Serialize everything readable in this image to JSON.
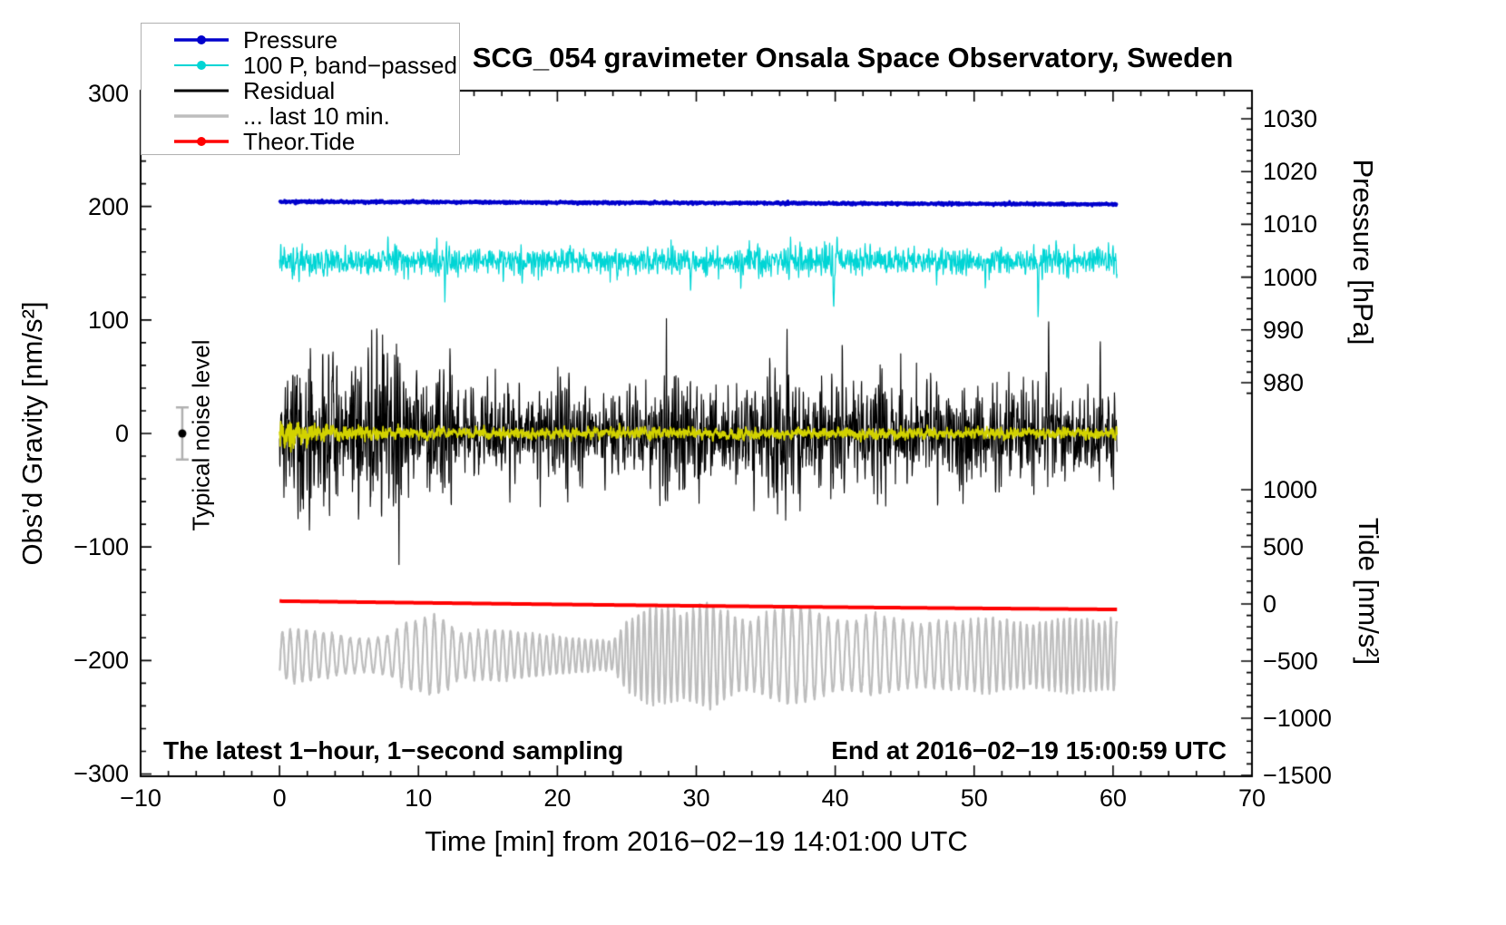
{
  "chart_data": {
    "type": "line",
    "title": "SCG_054 gravimeter Onsala Space Observatory, Sweden",
    "annotations": {
      "sampling_note": "The latest 1−hour, 1−second sampling",
      "end_time": "End at 2016−02−19 15:00:59 UTC",
      "noise_label": "Typical noise level"
    },
    "x_axis": {
      "label": "Time [min] from 2016−02−19 14:01:00 UTC",
      "min": -10,
      "max": 70,
      "minor_step": 2,
      "majors": [
        {
          "v": -10,
          "label": "−10"
        },
        {
          "v": 0,
          "label": "0"
        },
        {
          "v": 10,
          "label": "10"
        },
        {
          "v": 20,
          "label": "20"
        },
        {
          "v": 30,
          "label": "30"
        },
        {
          "v": 40,
          "label": "40"
        },
        {
          "v": 50,
          "label": "50"
        },
        {
          "v": 60,
          "label": "60"
        },
        {
          "v": 70,
          "label": "70"
        }
      ]
    },
    "gravity_axis": {
      "label": "Obs’d Gravity [nm/s²]",
      "min": -300,
      "max": 300,
      "minor_step": 20,
      "majors": [
        {
          "v": 300,
          "label": "300"
        },
        {
          "v": 200,
          "label": "200"
        },
        {
          "v": 100,
          "label": "100"
        },
        {
          "v": 0,
          "label": "0"
        },
        {
          "v": -100,
          "label": "−100"
        },
        {
          "v": -200,
          "label": "−200"
        },
        {
          "v": -300,
          "label": "−300"
        }
      ]
    },
    "pressure_axis": {
      "label": "Pressure [hPa]",
      "minor_step": 2,
      "majors": [
        {
          "v": 1030,
          "label": "1030"
        },
        {
          "v": 1020,
          "label": "1020"
        },
        {
          "v": 1010,
          "label": "1010"
        },
        {
          "v": 1000,
          "label": "1000"
        },
        {
          "v": 990,
          "label": "990"
        },
        {
          "v": 980,
          "label": "980"
        }
      ]
    },
    "tide_axis": {
      "label": "Tide [nm/s²]",
      "minor_step": 100,
      "majors": [
        {
          "v": 1000,
          "label": "1000"
        },
        {
          "v": 500,
          "label": "500"
        },
        {
          "v": 0,
          "label": "0"
        },
        {
          "v": -500,
          "label": "−500"
        },
        {
          "v": -1000,
          "label": "−1000"
        },
        {
          "v": -1500,
          "label": "−1500"
        }
      ]
    },
    "legend": {
      "items": [
        {
          "label": "Pressure",
          "color": "#0000cc",
          "marker": "line-dot",
          "lw": 3.5
        },
        {
          "label": "100 P, band−passed",
          "color": "#00d5d5",
          "marker": "line-dot",
          "lw": 2
        },
        {
          "label": "Residual",
          "color": "#000000",
          "marker": "line",
          "lw": 3
        },
        {
          "label": "... last 10 min.",
          "color": "#bdbdbd",
          "marker": "line",
          "lw": 3.5
        },
        {
          "label": "Theor.Tide",
          "color": "#ff0000",
          "marker": "line-dot",
          "lw": 3.5
        }
      ]
    },
    "noise_marker": {
      "t": -7,
      "value": 0,
      "err": 23,
      "color": "#b0b0b0"
    },
    "t_start": 0,
    "t_end": 60.3,
    "dt": 0.0166667,
    "series": [
      {
        "name": "pressure",
        "axis": "pressure",
        "color": "#0000cc",
        "lw": 3,
        "seed": 11,
        "type": "flat",
        "params": {
          "baseline": 1014.3,
          "slope": -0.008,
          "noise": 0.12
        }
      },
      {
        "name": "pressure-bandpassed-x100",
        "axis": "gravity",
        "color": "#00d5d5",
        "lw": 1.2,
        "seed": 22,
        "type": "ar2",
        "params": {
          "center": 152,
          "a1": 1.12,
          "a2": -0.62,
          "scale": 4.5,
          "envelope": [
            [
              0,
              18
            ],
            [
              3,
              16
            ],
            [
              6,
              15
            ],
            [
              10,
              14
            ],
            [
              15,
              13
            ],
            [
              20,
              13
            ],
            [
              25,
              14
            ],
            [
              30,
              14
            ],
            [
              35,
              15
            ],
            [
              40,
              16
            ],
            [
              45,
              14
            ],
            [
              50,
              14
            ],
            [
              55,
              15
            ],
            [
              60,
              14
            ]
          ],
          "spikes": [
            [
              3.2,
              -18,
              0.03
            ],
            [
              7.8,
              16,
              0.03
            ],
            [
              11.9,
              -26,
              0.03
            ],
            [
              17.5,
              -18,
              0.03
            ],
            [
              24.3,
              -20,
              0.03
            ],
            [
              29.6,
              -30,
              0.035
            ],
            [
              33.2,
              -20,
              0.03
            ],
            [
              36.8,
              18,
              0.03
            ],
            [
              39.9,
              -36,
              0.04
            ],
            [
              40.15,
              22,
              0.03
            ],
            [
              47.3,
              -22,
              0.03
            ],
            [
              50.8,
              -18,
              0.03
            ],
            [
              54.6,
              -44,
              0.04
            ],
            [
              55.9,
              16,
              0.03
            ]
          ]
        }
      },
      {
        "name": "residual-last-10-min",
        "axis": "tide",
        "color": "#bdbdbd",
        "lw": 2.2,
        "seed": 44,
        "type": "osc",
        "params": {
          "center": -450,
          "period0": 0.55,
          "period_var": 0.13,
          "period_t": 5.3,
          "jitter": 0.15,
          "envelope": [
            [
              0,
              200
            ],
            [
              1,
              230
            ],
            [
              2,
              220
            ],
            [
              3,
              200
            ],
            [
              4,
              180
            ],
            [
              5,
              150
            ],
            [
              6,
              140
            ],
            [
              7,
              150
            ],
            [
              8,
              170
            ],
            [
              9,
              280
            ],
            [
              10,
              310
            ],
            [
              11,
              350
            ],
            [
              12,
              300
            ],
            [
              13,
              190
            ],
            [
              14,
              200
            ],
            [
              15,
              210
            ],
            [
              16,
              220
            ],
            [
              17,
              200
            ],
            [
              18,
              185
            ],
            [
              19,
              170
            ],
            [
              20,
              160
            ],
            [
              21,
              150
            ],
            [
              22,
              140
            ],
            [
              23,
              130
            ],
            [
              24,
              130
            ],
            [
              25,
              300
            ],
            [
              26,
              380
            ],
            [
              27,
              420
            ],
            [
              28,
              400
            ],
            [
              29,
              350
            ],
            [
              30,
              420
            ],
            [
              31,
              450
            ],
            [
              32,
              380
            ],
            [
              33,
              310
            ],
            [
              34,
              290
            ],
            [
              35,
              350
            ],
            [
              36,
              400
            ],
            [
              37,
              420
            ],
            [
              38,
              400
            ],
            [
              39,
              350
            ],
            [
              40,
              310
            ],
            [
              41,
              290
            ],
            [
              42,
              320
            ],
            [
              43,
              350
            ],
            [
              44,
              310
            ],
            [
              45,
              290
            ],
            [
              46,
              260
            ],
            [
              47,
              280
            ],
            [
              48,
              300
            ],
            [
              49,
              285
            ],
            [
              50,
              300
            ],
            [
              51,
              320
            ],
            [
              52,
              300
            ],
            [
              53,
              285
            ],
            [
              54,
              260
            ],
            [
              55,
              285
            ],
            [
              56,
              305
            ],
            [
              57,
              320
            ],
            [
              58,
              305
            ],
            [
              59,
              290
            ],
            [
              60,
              300
            ]
          ]
        }
      },
      {
        "name": "theoretical-tide",
        "axis": "tide",
        "color": "#ff0000",
        "lw": 4,
        "seed": 55,
        "type": "trend",
        "params": {
          "start": 25,
          "end": -48,
          "sag": 5
        }
      },
      {
        "name": "residual",
        "axis": "gravity",
        "color": "#000000",
        "lw": 1.1,
        "seed": 33,
        "type": "ar2",
        "params": {
          "center": 0,
          "a1": 1.12,
          "a2": -0.62,
          "scale": 4.5,
          "envelope": [
            [
              0,
              35
            ],
            [
              0.5,
              75
            ],
            [
              1,
              85
            ],
            [
              2,
              95
            ],
            [
              3,
              90
            ],
            [
              4,
              88
            ],
            [
              5,
              70
            ],
            [
              6,
              72
            ],
            [
              7,
              78
            ],
            [
              8,
              80
            ],
            [
              9,
              78
            ],
            [
              10,
              70
            ],
            [
              11,
              68
            ],
            [
              12,
              58
            ],
            [
              13,
              52
            ],
            [
              14,
              50
            ],
            [
              15,
              48
            ],
            [
              16,
              45
            ],
            [
              17,
              44
            ],
            [
              18,
              45
            ],
            [
              19,
              48
            ],
            [
              20,
              50
            ],
            [
              21,
              46
            ],
            [
              22,
              44
            ],
            [
              23,
              42
            ],
            [
              24,
              45
            ],
            [
              25,
              52
            ],
            [
              26,
              58
            ],
            [
              27,
              65
            ],
            [
              28,
              68
            ],
            [
              29,
              62
            ],
            [
              30,
              60
            ],
            [
              31,
              55
            ],
            [
              32,
              48
            ],
            [
              33,
              50
            ],
            [
              34,
              52
            ],
            [
              35,
              75
            ],
            [
              36,
              88
            ],
            [
              37,
              60
            ],
            [
              38,
              52
            ],
            [
              39,
              55
            ],
            [
              40,
              62
            ],
            [
              41,
              55
            ],
            [
              42,
              60
            ],
            [
              43,
              72
            ],
            [
              44,
              62
            ],
            [
              45,
              58
            ],
            [
              46,
              55
            ],
            [
              47,
              48
            ],
            [
              48,
              46
            ],
            [
              49,
              50
            ],
            [
              50,
              54
            ],
            [
              51,
              56
            ],
            [
              52,
              58
            ],
            [
              53,
              55
            ],
            [
              54,
              60
            ],
            [
              55,
              58
            ],
            [
              56,
              55
            ],
            [
              57,
              52
            ],
            [
              58,
              50
            ],
            [
              59,
              52
            ],
            [
              60,
              55
            ]
          ],
          "spikes": []
        }
      },
      {
        "name": "residual-smoothed",
        "axis": "gravity",
        "color": "#d2d200",
        "lw": 1.8,
        "seed": 66,
        "type": "ar1",
        "params": {
          "center": 0,
          "a": 0.6,
          "scale": 2.5,
          "envelope": [
            [
              0,
              9
            ],
            [
              0.5,
              13
            ],
            [
              1.5,
              11
            ],
            [
              3,
              7
            ],
            [
              5,
              5.5
            ],
            [
              10,
              5
            ],
            [
              20,
              4.5
            ],
            [
              40,
              4.5
            ],
            [
              60,
              5
            ]
          ]
        }
      }
    ]
  }
}
